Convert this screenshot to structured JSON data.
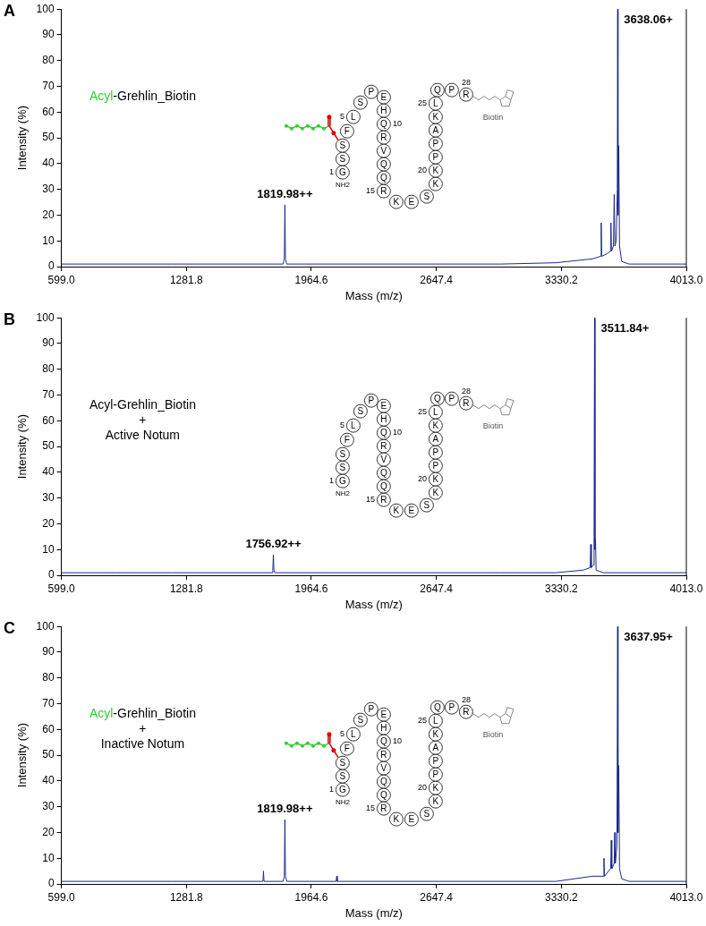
{
  "chart_data": [
    {
      "type": "line",
      "title": "A",
      "x_label": "Mass (m/z)",
      "y_label": "Intensity (%)",
      "color": "#1c2a8a",
      "grid": false,
      "xlim": [
        599,
        4013
      ],
      "xticks": [
        {
          "value": 599,
          "label": "599.0"
        },
        1281.8,
        1964.6,
        2647.4,
        3330.2,
        {
          "value": 4013,
          "label": "4013.0"
        }
      ],
      "ylim": [
        0,
        100
      ],
      "yticks": [
        0,
        10,
        20,
        30,
        40,
        50,
        60,
        70,
        80,
        90,
        100
      ],
      "x": [
        599,
        900,
        1200,
        1500,
        1810,
        1817,
        1819.98,
        1823,
        1830,
        2200,
        2600,
        3000,
        3300,
        3500,
        3545,
        3548,
        3551,
        3580,
        3598,
        3601,
        3604,
        3615,
        3619,
        3623,
        3630,
        3636,
        3638.06,
        3640,
        3644,
        3648,
        3660,
        3700,
        4013
      ],
      "values": [
        1,
        1,
        1,
        1,
        1,
        3,
        24,
        3,
        1,
        1,
        1,
        1,
        1.5,
        3,
        4,
        17,
        4,
        5,
        6,
        17,
        6,
        8,
        28,
        8,
        10,
        30,
        100,
        20,
        47,
        8,
        2,
        1,
        1
      ],
      "peak_labels": [
        {
          "text": "1819.98++",
          "x": 1819.98,
          "y": 24
        },
        {
          "text": "3638.06+",
          "x": 3638.06,
          "y": 100
        }
      ],
      "annotations": [
        [
          {
            "text": "Acyl",
            "color": "#33cc33"
          },
          {
            "text": "-Grehlin_Biotin"
          }
        ]
      ],
      "peptide": {
        "residues": [
          "G",
          "S",
          "S",
          "F",
          "L",
          "S",
          "P",
          "E",
          "H",
          "Q",
          "R",
          "V",
          "Q",
          "Q",
          "R",
          "K",
          "E",
          "S",
          "K",
          "K",
          "P",
          "P",
          "A",
          "K",
          "L",
          "Q",
          "P",
          "R"
        ],
        "numbered": [
          1,
          5,
          10,
          15,
          20,
          25,
          28
        ],
        "n_terminus": "NH2",
        "tag": "Biotin",
        "acylated": true
      }
    },
    {
      "type": "line",
      "title": "B",
      "x_label": "Mass (m/z)",
      "y_label": "Intensity (%)",
      "color": "#1c2a8a",
      "grid": false,
      "xlim": [
        599,
        4013
      ],
      "xticks": [
        {
          "value": 599,
          "label": "599.0"
        },
        1281.8,
        1964.6,
        2647.4,
        3330.2,
        {
          "value": 4013,
          "label": "4013.0"
        }
      ],
      "ylim": [
        0,
        100
      ],
      "yticks": [
        0,
        10,
        20,
        30,
        40,
        50,
        60,
        70,
        80,
        90,
        100
      ],
      "x": [
        599,
        900,
        1200,
        1500,
        1750,
        1754,
        1756.92,
        1760,
        1765,
        2200,
        2600,
        3000,
        3300,
        3450,
        3488,
        3491,
        3494,
        3505,
        3509,
        3511.84,
        3514,
        3517,
        3520,
        3560,
        4013
      ],
      "values": [
        1,
        1,
        1,
        1,
        1,
        2,
        8,
        2,
        1,
        1,
        1,
        1,
        1,
        2,
        3,
        12,
        3,
        4,
        15,
        100,
        10,
        14,
        2,
        1,
        1
      ],
      "peak_labels": [
        {
          "text": "1756.92++",
          "x": 1756.92,
          "y": 8
        },
        {
          "text": "3511.84+",
          "x": 3511.84,
          "y": 100
        }
      ],
      "annotations": [
        [
          {
            "text": "Acyl-Grehlin_Biotin"
          }
        ],
        [
          {
            "text": "+"
          }
        ],
        [
          {
            "text": "Active Notum"
          }
        ]
      ],
      "peptide": {
        "residues": [
          "G",
          "S",
          "S",
          "F",
          "L",
          "S",
          "P",
          "E",
          "H",
          "Q",
          "R",
          "V",
          "Q",
          "Q",
          "R",
          "K",
          "E",
          "S",
          "K",
          "K",
          "P",
          "P",
          "A",
          "K",
          "L",
          "Q",
          "P",
          "R"
        ],
        "numbered": [
          1,
          5,
          10,
          15,
          20,
          25,
          28
        ],
        "n_terminus": "NH2",
        "tag": "Biotin",
        "acylated": false
      }
    },
    {
      "type": "line",
      "title": "C",
      "x_label": "Mass (m/z)",
      "y_label": "Intensity (%)",
      "color": "#1c2a8a",
      "grid": false,
      "xlim": [
        599,
        4013
      ],
      "xticks": [
        {
          "value": 599,
          "label": "599.0"
        },
        1281.8,
        1964.6,
        2647.4,
        3330.2,
        {
          "value": 4013,
          "label": "4013.0"
        }
      ],
      "ylim": [
        0,
        100
      ],
      "yticks": [
        0,
        10,
        20,
        30,
        40,
        50,
        60,
        70,
        80,
        90,
        100
      ],
      "x": [
        599,
        1200,
        1700,
        1703,
        1706,
        1810,
        1817,
        1819.98,
        1823,
        1830,
        2100,
        2103,
        2106,
        2600,
        3300,
        3500,
        3560,
        3563,
        3566,
        3600,
        3603,
        3606,
        3619,
        3622,
        3625,
        3634,
        3637.95,
        3640,
        3644,
        3648,
        3660,
        3700,
        4013
      ],
      "values": [
        1,
        1,
        1,
        5,
        1,
        1,
        3,
        25,
        3,
        1,
        1,
        3,
        1,
        1,
        1,
        3,
        3,
        10,
        3,
        6,
        17,
        6,
        8,
        20,
        8,
        15,
        100,
        20,
        46,
        6,
        2,
        1,
        1
      ],
      "peak_labels": [
        {
          "text": "1819.98++",
          "x": 1819.98,
          "y": 25
        },
        {
          "text": "3637.95+",
          "x": 3637.95,
          "y": 100
        }
      ],
      "annotations": [
        [
          {
            "text": "Acyl",
            "color": "#33cc33"
          },
          {
            "text": "-Grehlin_Biotin"
          }
        ],
        [
          {
            "text": "+"
          }
        ],
        [
          {
            "text": "Inactive Notum"
          }
        ]
      ],
      "peptide": {
        "residues": [
          "G",
          "S",
          "S",
          "F",
          "L",
          "S",
          "P",
          "E",
          "H",
          "Q",
          "R",
          "V",
          "Q",
          "Q",
          "R",
          "K",
          "E",
          "S",
          "K",
          "K",
          "P",
          "P",
          "A",
          "K",
          "L",
          "Q",
          "P",
          "R"
        ],
        "numbered": [
          1,
          5,
          10,
          15,
          20,
          25,
          28
        ],
        "n_terminus": "NH2",
        "tag": "Biotin",
        "acylated": true
      }
    }
  ]
}
